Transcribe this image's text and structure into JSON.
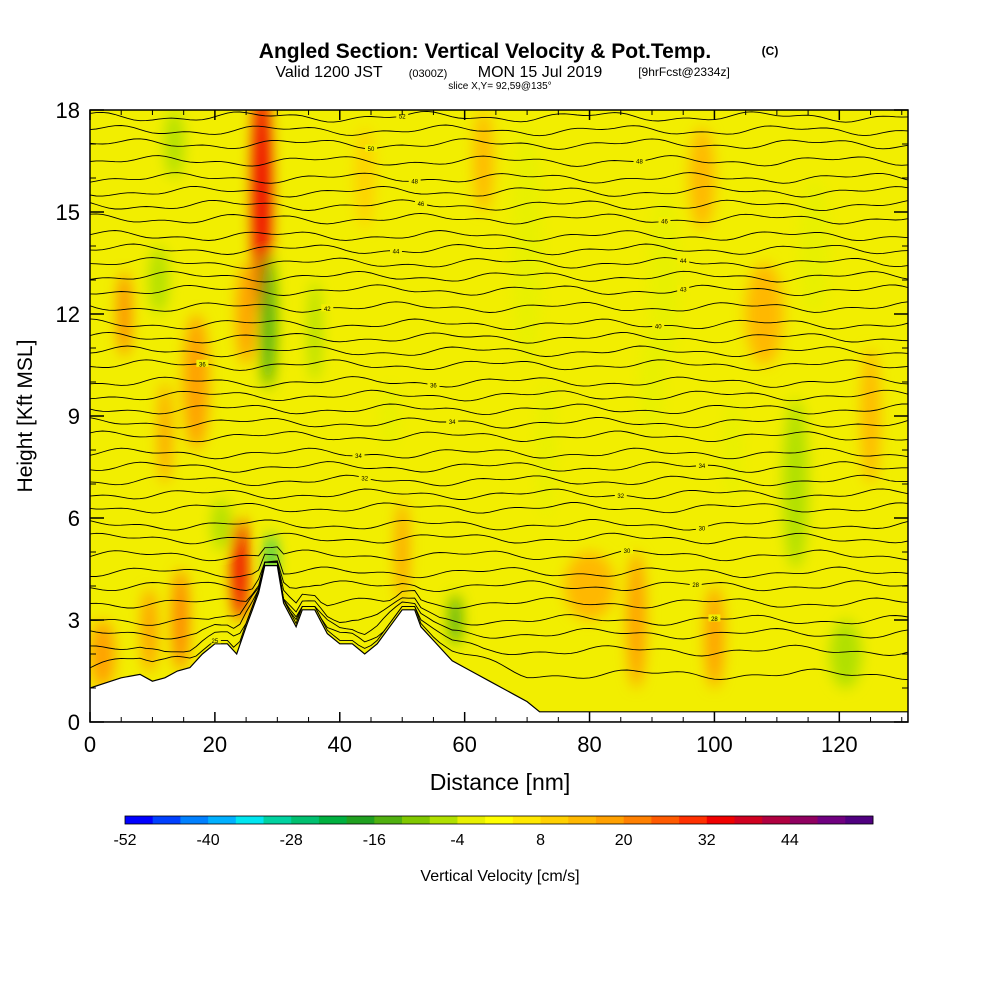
{
  "header": {
    "title": "Angled Section: Vertical Velocity & Pot.Temp.",
    "title_mark": "(C)",
    "valid_prefix": "Valid 1200 JST",
    "valid_utc": "(0300Z)",
    "valid_date": "MON 15 Jul 2019",
    "forecast_note": "[9hrFcst@2334z]",
    "slice_note": "slice X,Y= 92,59@135°"
  },
  "colorbar": {
    "label": "Vertical Velocity [cm/s]",
    "colors": [
      "#0000ff",
      "#0040ff",
      "#0080ff",
      "#00b0ff",
      "#00e6f0",
      "#00d2a0",
      "#00c070",
      "#00b040",
      "#20a020",
      "#50b010",
      "#80c800",
      "#b0e000",
      "#e8f000",
      "#ffff00",
      "#ffe800",
      "#ffd000",
      "#ffb800",
      "#ffa000",
      "#ff8000",
      "#ff5a00",
      "#ff3000",
      "#f00000",
      "#d00020",
      "#b00040",
      "#900060",
      "#700080",
      "#500080"
    ],
    "ticks": [
      "-52",
      "-40",
      "-28",
      "-16",
      "-4",
      "8",
      "20",
      "32",
      "44"
    ]
  },
  "chart_data": {
    "type": "heatmap",
    "title": "Angled Section: Vertical Velocity & Pot.Temp.",
    "xlabel": "Distance [nm]",
    "ylabel": "Height [Kft MSL]",
    "xlim": [
      0,
      131
    ],
    "ylim": [
      0,
      18
    ],
    "xticks": [
      "0",
      "20",
      "40",
      "60",
      "80",
      "100",
      "120"
    ],
    "yticks": [
      "0",
      "3",
      "6",
      "9",
      "12",
      "15",
      "18"
    ],
    "terrain": [
      [
        0,
        1.0
      ],
      [
        5,
        1.3
      ],
      [
        8,
        1.4
      ],
      [
        10,
        1.2
      ],
      [
        12,
        1.3
      ],
      [
        14,
        1.5
      ],
      [
        16,
        1.6
      ],
      [
        18,
        2.0
      ],
      [
        20,
        2.3
      ],
      [
        22,
        2.3
      ],
      [
        23.5,
        2.0
      ],
      [
        25,
        2.8
      ],
      [
        26,
        3.3
      ],
      [
        27,
        3.8
      ],
      [
        28,
        4.6
      ],
      [
        30,
        4.6
      ],
      [
        31,
        3.5
      ],
      [
        33,
        2.8
      ],
      [
        34,
        3.3
      ],
      [
        36,
        3.3
      ],
      [
        38,
        2.6
      ],
      [
        40,
        2.3
      ],
      [
        42,
        2.3
      ],
      [
        44,
        2.0
      ],
      [
        46,
        2.3
      ],
      [
        48,
        2.8
      ],
      [
        50,
        3.3
      ],
      [
        52,
        3.3
      ],
      [
        53,
        2.8
      ],
      [
        55,
        2.4
      ],
      [
        57,
        2.0
      ],
      [
        58,
        1.8
      ],
      [
        60,
        1.6
      ],
      [
        62,
        1.4
      ],
      [
        64,
        1.2
      ],
      [
        66,
        1.0
      ],
      [
        68,
        0.8
      ],
      [
        70,
        0.6
      ],
      [
        72,
        0.3
      ],
      [
        131,
        0.3
      ]
    ],
    "velocity_cells": [
      {
        "x": 27.5,
        "y": 15.5,
        "w": 3,
        "h": 7,
        "v": 32
      },
      {
        "x": 24,
        "y": 4.5,
        "w": 2.5,
        "h": 3,
        "v": 32
      },
      {
        "x": 28.5,
        "y": 11.8,
        "w": 2.5,
        "h": 4,
        "v": -16
      },
      {
        "x": 29,
        "y": 4.8,
        "w": 1.5,
        "h": 1.5,
        "v": -28
      },
      {
        "x": 36,
        "y": 11.5,
        "w": 2,
        "h": 3,
        "v": -8
      },
      {
        "x": 13.5,
        "y": 17,
        "w": 3,
        "h": 2,
        "v": -8
      },
      {
        "x": 11,
        "y": 13,
        "w": 3,
        "h": 2,
        "v": -8
      },
      {
        "x": 70,
        "y": 14,
        "w": 5,
        "h": 7,
        "v": -4
      },
      {
        "x": 73,
        "y": 8,
        "w": 3,
        "h": 4,
        "v": -4
      },
      {
        "x": 92,
        "y": 13,
        "w": 5,
        "h": 5,
        "v": -4
      },
      {
        "x": 113,
        "y": 7,
        "w": 4,
        "h": 5,
        "v": -8
      },
      {
        "x": 116,
        "y": 14,
        "w": 5,
        "h": 4,
        "v": -4
      },
      {
        "x": 121,
        "y": 2,
        "w": 5,
        "h": 2,
        "v": -8
      },
      {
        "x": 58.5,
        "y": 3,
        "w": 2,
        "h": 1.5,
        "v": -16
      },
      {
        "x": 21,
        "y": 5.8,
        "w": 3,
        "h": 1.5,
        "v": -8
      },
      {
        "x": 48,
        "y": 9,
        "w": 3,
        "h": 2,
        "v": -4
      },
      {
        "x": 90,
        "y": 10,
        "w": 4,
        "h": 3,
        "v": -4
      },
      {
        "x": 103,
        "y": 8,
        "w": 3,
        "h": 3,
        "v": -4
      },
      {
        "x": 2,
        "y": 2,
        "w": 4,
        "h": 2,
        "v": 14
      },
      {
        "x": 14.5,
        "y": 3,
        "w": 2.5,
        "h": 3,
        "v": 20
      },
      {
        "x": 9.5,
        "y": 2.7,
        "w": 2.5,
        "h": 2.5,
        "v": 14
      },
      {
        "x": 5.5,
        "y": 12,
        "w": 2,
        "h": 2.5,
        "v": 20
      },
      {
        "x": 17,
        "y": 10,
        "w": 4,
        "h": 4,
        "v": 14
      },
      {
        "x": 25,
        "y": 12,
        "w": 3,
        "h": 3,
        "v": 14
      },
      {
        "x": 12,
        "y": 8.5,
        "w": 2,
        "h": 3,
        "v": 14
      },
      {
        "x": 87.5,
        "y": 3,
        "w": 3,
        "h": 4,
        "v": 14
      },
      {
        "x": 100,
        "y": 2.5,
        "w": 3,
        "h": 3,
        "v": 14
      },
      {
        "x": 108,
        "y": 12,
        "w": 6,
        "h": 3,
        "v": 10
      },
      {
        "x": 125,
        "y": 9,
        "w": 3,
        "h": 4,
        "v": 10
      },
      {
        "x": 80,
        "y": 4,
        "w": 8,
        "h": 2,
        "v": 10
      },
      {
        "x": 63,
        "y": 16.5,
        "w": 3,
        "h": 3,
        "v": 10
      },
      {
        "x": 98,
        "y": 16,
        "w": 4,
        "h": 3,
        "v": 10
      },
      {
        "x": 50,
        "y": 5,
        "w": 2,
        "h": 3,
        "v": 14
      },
      {
        "x": 44,
        "y": 16,
        "w": 3,
        "h": 3,
        "v": 8
      }
    ],
    "isentropes": [
      {
        "base": 1.4,
        "label": "25",
        "lx": 20
      },
      {
        "base": 2.1
      },
      {
        "base": 2.6
      },
      {
        "base": 3.0,
        "label": "28",
        "lx": 100
      },
      {
        "base": 3.5
      },
      {
        "base": 4.0,
        "label": "28",
        "lx": 97
      },
      {
        "base": 4.4
      },
      {
        "base": 4.9,
        "label": "30",
        "lx": 86
      },
      {
        "base": 5.4
      },
      {
        "base": 5.8,
        "label": "30",
        "lx": 98
      },
      {
        "base": 6.3
      },
      {
        "base": 6.7,
        "label": "32",
        "lx": 85
      },
      {
        "base": 7.1,
        "label": "32",
        "lx": 44
      },
      {
        "base": 7.5,
        "label": "34",
        "lx": 98
      },
      {
        "base": 7.9,
        "label": "34",
        "lx": 43
      },
      {
        "base": 8.4
      },
      {
        "base": 8.8,
        "label": "34",
        "lx": 58
      },
      {
        "base": 9.2
      },
      {
        "base": 9.6
      },
      {
        "base": 10.0,
        "label": "36",
        "lx": 55
      },
      {
        "base": 10.5,
        "label": "36",
        "lx": 18
      },
      {
        "base": 10.9
      },
      {
        "base": 11.3
      },
      {
        "base": 11.7,
        "label": "40",
        "lx": 91
      },
      {
        "base": 12.2,
        "label": "42",
        "lx": 38
      },
      {
        "base": 12.7,
        "label": "43",
        "lx": 95
      },
      {
        "base": 13.1
      },
      {
        "base": 13.5,
        "label": "44",
        "lx": 95
      },
      {
        "base": 13.9,
        "label": "44",
        "lx": 49
      },
      {
        "base": 14.3
      },
      {
        "base": 14.8,
        "label": "46",
        "lx": 92
      },
      {
        "base": 15.2,
        "label": "46",
        "lx": 53
      },
      {
        "base": 15.6
      },
      {
        "base": 16.0,
        "label": "48",
        "lx": 52
      },
      {
        "base": 16.5,
        "label": "48",
        "lx": 88
      },
      {
        "base": 17.0,
        "label": "50",
        "lx": 45
      },
      {
        "base": 17.4
      },
      {
        "base": 17.8,
        "label": "52",
        "lx": 50
      }
    ]
  }
}
